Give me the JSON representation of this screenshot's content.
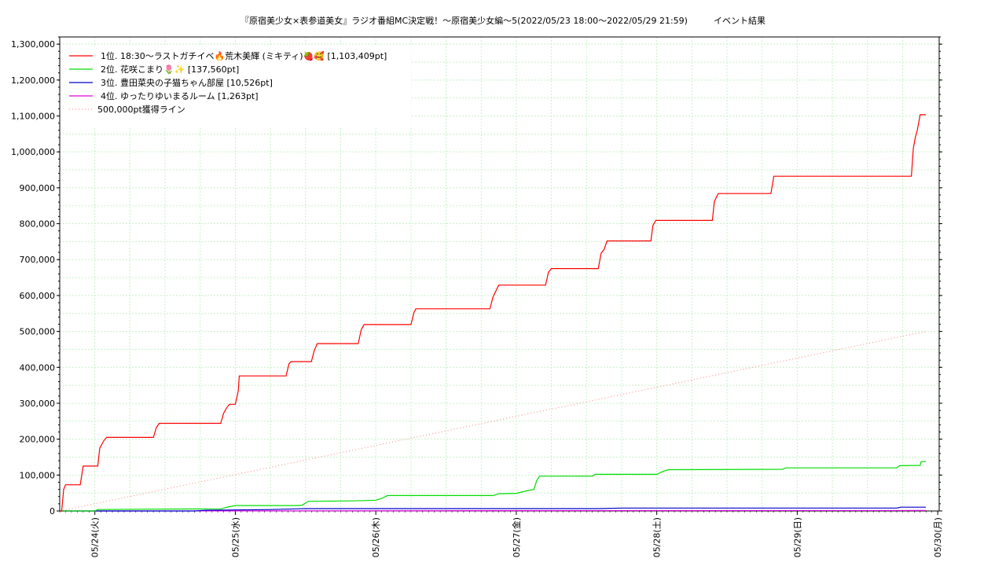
{
  "chart_data": {
    "type": "line",
    "title": "『原宿美少女×表参道美女』ラジオ番組MC決定戦！～原宿美少女編～5(2022/05/23 18:00～2022/05/29 21:59)　　　イベント結果",
    "xlabel": "",
    "ylabel": "",
    "x_range": [
      "2022-05-23 18:00",
      "2022-05-29 21:59"
    ],
    "x_tick_labels": [
      "05/24(火)",
      "05/25(水)",
      "05/26(木)",
      "05/27(金)",
      "05/28(土)",
      "05/29(日)",
      "05/30(月)"
    ],
    "x_tick_dates": [
      "2022-05-24 00:00",
      "2022-05-25 00:00",
      "2022-05-26 00:00",
      "2022-05-27 00:00",
      "2022-05-28 00:00",
      "2022-05-29 00:00",
      "2022-05-30 00:00"
    ],
    "ylim": [
      0,
      1320000
    ],
    "y_ticks": [
      0,
      100000,
      200000,
      300000,
      400000,
      500000,
      600000,
      700000,
      800000,
      900000,
      1000000,
      1100000,
      1200000,
      1300000
    ],
    "y_tick_labels": [
      "0",
      "100,000",
      "200,000",
      "300,000",
      "400,000",
      "500,000",
      "600,000",
      "700,000",
      "800,000",
      "900,000",
      "1,000,000",
      "1,100,000",
      "1,200,000",
      "1,300,000"
    ],
    "grid": true,
    "legend_position": "top-left",
    "series": [
      {
        "name": "1位. 18:30〜ラストガチイベ🔥荒木美輝 (ミキティ)🍓🥰 [1,103,409pt]",
        "color": "#ff0000",
        "dash": false,
        "points": [
          [
            "2022-05-23 18:00",
            0
          ],
          [
            "2022-05-23 18:20",
            0
          ],
          [
            "2022-05-23 18:40",
            60000
          ],
          [
            "2022-05-23 19:00",
            73000
          ],
          [
            "2022-05-23 21:30",
            73000
          ],
          [
            "2022-05-23 22:00",
            125000
          ],
          [
            "2022-05-24 00:30",
            125000
          ],
          [
            "2022-05-24 00:50",
            175000
          ],
          [
            "2022-05-24 01:30",
            195000
          ],
          [
            "2022-05-24 02:00",
            205000
          ],
          [
            "2022-05-24 10:00",
            205000
          ],
          [
            "2022-05-24 10:30",
            232000
          ],
          [
            "2022-05-24 11:00",
            244000
          ],
          [
            "2022-05-24 21:30",
            244000
          ],
          [
            "2022-05-24 22:00",
            272000
          ],
          [
            "2022-05-24 22:30",
            287000
          ],
          [
            "2022-05-24 23:00",
            297000
          ],
          [
            "2022-05-25 00:00",
            297000
          ],
          [
            "2022-05-25 00:30",
            335000
          ],
          [
            "2022-05-25 00:40",
            376000
          ],
          [
            "2022-05-25 08:40",
            376000
          ],
          [
            "2022-05-25 09:10",
            410000
          ],
          [
            "2022-05-25 09:30",
            416000
          ],
          [
            "2022-05-25 13:00",
            416000
          ],
          [
            "2022-05-25 13:30",
            448000
          ],
          [
            "2022-05-25 14:00",
            466000
          ],
          [
            "2022-05-25 21:00",
            466000
          ],
          [
            "2022-05-25 21:30",
            505000
          ],
          [
            "2022-05-25 22:00",
            519000
          ],
          [
            "2022-05-26 06:00",
            519000
          ],
          [
            "2022-05-26 06:30",
            552000
          ],
          [
            "2022-05-26 06:50",
            563000
          ],
          [
            "2022-05-26 19:30",
            563000
          ],
          [
            "2022-05-26 20:00",
            595000
          ],
          [
            "2022-05-26 20:30",
            612000
          ],
          [
            "2022-05-26 21:00",
            629000
          ],
          [
            "2022-05-27 05:00",
            629000
          ],
          [
            "2022-05-27 05:30",
            665000
          ],
          [
            "2022-05-27 06:00",
            675000
          ],
          [
            "2022-05-27 14:00",
            675000
          ],
          [
            "2022-05-27 14:30",
            718000
          ],
          [
            "2022-05-27 15:00",
            728000
          ],
          [
            "2022-05-27 15:30",
            752000
          ],
          [
            "2022-05-27 23:00",
            752000
          ],
          [
            "2022-05-27 23:20",
            795000
          ],
          [
            "2022-05-27 23:50",
            809000
          ],
          [
            "2022-05-28 09:30",
            809000
          ],
          [
            "2022-05-28 09:50",
            862000
          ],
          [
            "2022-05-28 10:30",
            884000
          ],
          [
            "2022-05-28 19:30",
            884000
          ],
          [
            "2022-05-28 20:00",
            932000
          ],
          [
            "2022-05-29 19:30",
            932000
          ],
          [
            "2022-05-29 19:50",
            1010000
          ],
          [
            "2022-05-29 20:10",
            1040000
          ],
          [
            "2022-05-29 20:30",
            1060000
          ],
          [
            "2022-05-29 21:00",
            1103409
          ],
          [
            "2022-05-29 21:59",
            1103409
          ]
        ]
      },
      {
        "name": "2位. 花咲こまり🌷✨ [137,560pt]",
        "color": "#00dd00",
        "dash": false,
        "points": [
          [
            "2022-05-23 18:00",
            0
          ],
          [
            "2022-05-24 00:00",
            0
          ],
          [
            "2022-05-24 00:30",
            4000
          ],
          [
            "2022-05-24 09:00",
            5000
          ],
          [
            "2022-05-24 21:30",
            6000
          ],
          [
            "2022-05-24 23:00",
            12000
          ],
          [
            "2022-05-25 00:00",
            15000
          ],
          [
            "2022-05-25 11:00",
            15000
          ],
          [
            "2022-05-25 11:30",
            17000
          ],
          [
            "2022-05-25 12:30",
            27000
          ],
          [
            "2022-05-25 20:00",
            28000
          ],
          [
            "2022-05-26 00:00",
            30000
          ],
          [
            "2022-05-26 01:00",
            35000
          ],
          [
            "2022-05-26 02:00",
            43000
          ],
          [
            "2022-05-26 20:00",
            43000
          ],
          [
            "2022-05-26 21:00",
            48000
          ],
          [
            "2022-05-27 00:00",
            49000
          ],
          [
            "2022-05-27 02:00",
            57000
          ],
          [
            "2022-05-27 03:00",
            60000
          ],
          [
            "2022-05-27 03:30",
            85000
          ],
          [
            "2022-05-27 04:00",
            97000
          ],
          [
            "2022-05-27 13:00",
            97000
          ],
          [
            "2022-05-27 13:30",
            102000
          ],
          [
            "2022-05-28 00:00",
            102000
          ],
          [
            "2022-05-28 01:00",
            110000
          ],
          [
            "2022-05-28 02:00",
            115000
          ],
          [
            "2022-05-28 21:30",
            116000
          ],
          [
            "2022-05-28 22:00",
            120000
          ],
          [
            "2022-05-29 17:00",
            120000
          ],
          [
            "2022-05-29 17:30",
            126000
          ],
          [
            "2022-05-29 21:00",
            127000
          ],
          [
            "2022-05-29 21:10",
            137560
          ],
          [
            "2022-05-29 21:59",
            137560
          ]
        ]
      },
      {
        "name": "3位. 豊田菜央の子猫ちゃん部屋 [10,526pt]",
        "color": "#0000cc",
        "dash": false,
        "points": [
          [
            "2022-05-23 18:00",
            0
          ],
          [
            "2022-05-24 17:00",
            0
          ],
          [
            "2022-05-24 19:00",
            2000
          ],
          [
            "2022-05-25 06:00",
            4000
          ],
          [
            "2022-05-25 12:00",
            6500
          ],
          [
            "2022-05-27 14:00",
            6500
          ],
          [
            "2022-05-27 18:00",
            8000
          ],
          [
            "2022-05-29 17:00",
            8000
          ],
          [
            "2022-05-29 17:40",
            10526
          ],
          [
            "2022-05-29 21:59",
            10526
          ]
        ]
      },
      {
        "name": "4位. ゆったりゆいまるルーム [1,263pt]",
        "color": "#dd00dd",
        "dash": false,
        "points": [
          [
            "2022-05-23 18:00",
            0
          ],
          [
            "2022-05-25 00:00",
            300
          ],
          [
            "2022-05-27 00:00",
            800
          ],
          [
            "2022-05-29 21:59",
            1263
          ]
        ]
      },
      {
        "name": "500,000pt獲得ライン",
        "color": "#ff8080",
        "dash": true,
        "points": [
          [
            "2022-05-23 18:00",
            0
          ],
          [
            "2022-05-29 21:59",
            500000
          ]
        ]
      }
    ]
  }
}
